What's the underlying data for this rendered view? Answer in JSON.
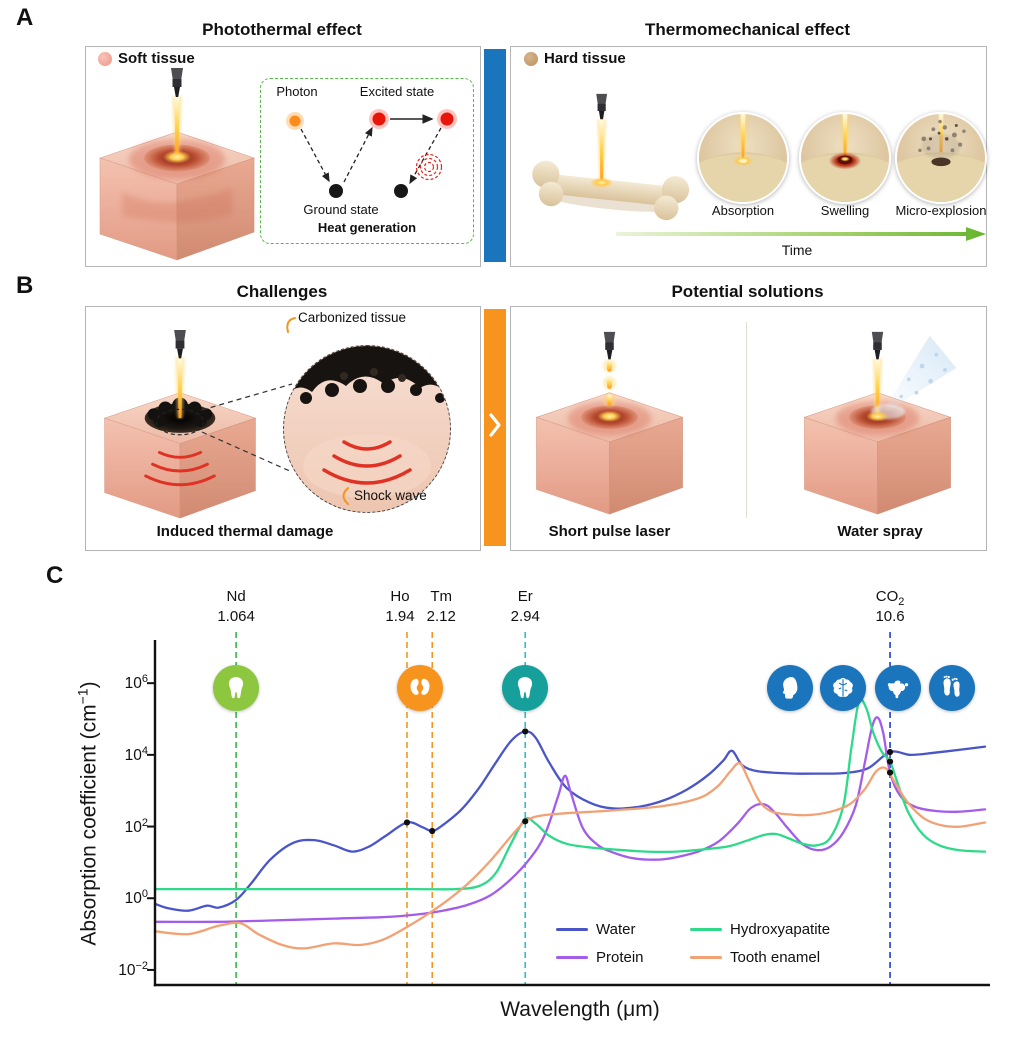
{
  "panelA": {
    "label": "A",
    "photothermal": {
      "title": "Photothermal effect",
      "tissue_label": "Soft tissue",
      "diagram": {
        "photon": "Photon",
        "excited_state": "Excited state",
        "ground_state": "Ground state",
        "caption": "Heat generation"
      }
    },
    "thermomechanical": {
      "title": "Thermomechanical effect",
      "tissue_label": "Hard tissue",
      "stages": [
        "Absorption",
        "Swelling",
        "Micro-explosion"
      ],
      "timeline_label": "Time"
    }
  },
  "panelB": {
    "label": "B",
    "challenges": {
      "title": "Challenges",
      "callout_top": "Carbonized tissue",
      "callout_bottom": "Shock wave",
      "caption": "Induced thermal damage"
    },
    "solutions": {
      "title": "Potential solutions",
      "caption_left": "Short pulse laser",
      "caption_right": "Water spray"
    }
  },
  "panelC": {
    "label": "C"
  },
  "chart_data": {
    "type": "line",
    "xlabel": "Wavelength (μm)",
    "ylabel": "Absorption coefficient (cm⁻¹)",
    "ylabel_main": "Absorption coefficient (cm",
    "ylabel_sup": "−1",
    "ylabel_close": ")",
    "x_scale": "log",
    "y_scale": "log",
    "xlim": [
      0.8,
      14.8
    ],
    "ylim": [
      0.0038,
      16000000
    ],
    "grid": false,
    "legend_position": "inside bottom, two columns",
    "y_ticks": [
      {
        "label": "10⁶",
        "exp": "6",
        "value": 1000000
      },
      {
        "label": "10⁴",
        "exp": "4",
        "value": 10000
      },
      {
        "label": "10²",
        "exp": "2",
        "value": 100
      },
      {
        "label": "10⁰",
        "exp": "0",
        "value": 1
      },
      {
        "label": "10⁻²",
        "exp": "−2",
        "value": 0.01
      }
    ],
    "laser_lines": [
      {
        "name": "Nd",
        "value_label": "1.064",
        "wavelength": 1.064,
        "color": "#3cb44a",
        "label_dx": 0
      },
      {
        "name": "Ho",
        "value_label": "1.94",
        "wavelength": 1.94,
        "color": "#f7941d",
        "label_dx": -7
      },
      {
        "name": "Tm",
        "value_label": "2.12",
        "wavelength": 2.12,
        "color": "#f7941d",
        "label_dx": 9
      },
      {
        "name": "Er",
        "value_label": "2.94",
        "wavelength": 2.94,
        "color": "#2bbfc4",
        "label_dx": 0
      },
      {
        "name": "CO₂",
        "value_label": "10.6",
        "wavelength": 10.6,
        "color": "#1b3fd0",
        "label_dx": 0
      }
    ],
    "icons": [
      {
        "name": "nd-tooth-icon",
        "glyph": "tooth",
        "color": "#8dc63f",
        "x": 1.064
      },
      {
        "name": "ho-tm-kidney-icon",
        "glyph": "kidney",
        "color": "#f7941d",
        "x": 2.03
      },
      {
        "name": "er-tooth-icon",
        "glyph": "tooth",
        "color": "#17a09b",
        "x": 2.94
      },
      {
        "name": "co2-head-icon",
        "glyph": "head",
        "color": "#1b75bc",
        "x": 7.45
      },
      {
        "name": "co2-brain-icon",
        "glyph": "brain",
        "color": "#1b75bc",
        "x": 8.98
      },
      {
        "name": "co2-uterus-icon",
        "glyph": "uterus",
        "color": "#1b75bc",
        "x": 10.9
      },
      {
        "name": "co2-feet-icon",
        "glyph": "feet",
        "color": "#1b75bc",
        "x": 13.2
      }
    ],
    "series": [
      {
        "name": "Water",
        "color": "#4a55c8",
        "points": [
          [
            0.8,
            0.7
          ],
          [
            0.84,
            0.52
          ],
          [
            0.9,
            0.45
          ],
          [
            0.96,
            0.62
          ],
          [
            1.0,
            0.55
          ],
          [
            1.064,
            0.9
          ],
          [
            1.12,
            2.5
          ],
          [
            1.2,
            12
          ],
          [
            1.3,
            35
          ],
          [
            1.4,
            42
          ],
          [
            1.5,
            30
          ],
          [
            1.6,
            20
          ],
          [
            1.7,
            28
          ],
          [
            1.8,
            55
          ],
          [
            1.94,
            130
          ],
          [
            2.05,
            95
          ],
          [
            2.12,
            75
          ],
          [
            2.2,
            110
          ],
          [
            2.35,
            300
          ],
          [
            2.5,
            1200
          ],
          [
            2.65,
            6000
          ],
          [
            2.8,
            25000
          ],
          [
            2.94,
            45000
          ],
          [
            3.05,
            30000
          ],
          [
            3.2,
            6000
          ],
          [
            3.4,
            1200
          ],
          [
            3.7,
            450
          ],
          [
            4.0,
            320
          ],
          [
            4.4,
            360
          ],
          [
            4.8,
            550
          ],
          [
            5.2,
            1100
          ],
          [
            5.6,
            2800
          ],
          [
            5.9,
            7000
          ],
          [
            6.08,
            13000
          ],
          [
            6.3,
            5200
          ],
          [
            6.6,
            3600
          ],
          [
            7.0,
            3200
          ],
          [
            7.6,
            3000
          ],
          [
            8.2,
            3000
          ],
          [
            9.0,
            3100
          ],
          [
            9.8,
            4200
          ],
          [
            10.6,
            12000
          ],
          [
            11.4,
            10000
          ],
          [
            12.4,
            11500
          ],
          [
            13.6,
            14000
          ],
          [
            14.8,
            17000
          ]
        ]
      },
      {
        "name": "Protein",
        "color": "#a35de8",
        "points": [
          [
            0.8,
            0.22
          ],
          [
            1.0,
            0.22
          ],
          [
            1.2,
            0.24
          ],
          [
            1.5,
            0.27
          ],
          [
            1.8,
            0.3
          ],
          [
            2.0,
            0.35
          ],
          [
            2.2,
            0.45
          ],
          [
            2.4,
            0.65
          ],
          [
            2.6,
            1.2
          ],
          [
            2.8,
            3.5
          ],
          [
            3.0,
            14
          ],
          [
            3.15,
            60
          ],
          [
            3.3,
            700
          ],
          [
            3.38,
            2600
          ],
          [
            3.45,
            900
          ],
          [
            3.6,
            90
          ],
          [
            3.8,
            30
          ],
          [
            4.0,
            19
          ],
          [
            4.3,
            13
          ],
          [
            4.7,
            12
          ],
          [
            5.0,
            14
          ],
          [
            5.4,
            20
          ],
          [
            5.8,
            38
          ],
          [
            6.2,
            120
          ],
          [
            6.5,
            330
          ],
          [
            6.8,
            420
          ],
          [
            7.05,
            260
          ],
          [
            7.4,
            90
          ],
          [
            7.8,
            32
          ],
          [
            8.2,
            22
          ],
          [
            8.6,
            28
          ],
          [
            9.0,
            70
          ],
          [
            9.4,
            400
          ],
          [
            9.7,
            6000
          ],
          [
            9.95,
            60000
          ],
          [
            10.15,
            110000
          ],
          [
            10.35,
            40000
          ],
          [
            10.6,
            3200
          ],
          [
            11.0,
            700
          ],
          [
            11.6,
            350
          ],
          [
            12.5,
            270
          ],
          [
            13.5,
            260
          ],
          [
            14.8,
            300
          ]
        ]
      },
      {
        "name": "Hydroxyapatite",
        "color": "#2fd98a",
        "points": [
          [
            0.8,
            1.8
          ],
          [
            1.2,
            1.8
          ],
          [
            1.6,
            1.8
          ],
          [
            2.0,
            1.8
          ],
          [
            2.3,
            1.8
          ],
          [
            2.5,
            2.2
          ],
          [
            2.65,
            5
          ],
          [
            2.8,
            35
          ],
          [
            2.94,
            160
          ],
          [
            3.05,
            120
          ],
          [
            3.2,
            55
          ],
          [
            3.4,
            33
          ],
          [
            3.7,
            26
          ],
          [
            4.0,
            23
          ],
          [
            4.5,
            20
          ],
          [
            5.0,
            20
          ],
          [
            5.5,
            23
          ],
          [
            6.0,
            28
          ],
          [
            6.4,
            40
          ],
          [
            6.8,
            58
          ],
          [
            7.1,
            62
          ],
          [
            7.4,
            48
          ],
          [
            7.8,
            33
          ],
          [
            8.2,
            30
          ],
          [
            8.6,
            50
          ],
          [
            9.0,
            400
          ],
          [
            9.25,
            15000
          ],
          [
            9.5,
            300000
          ],
          [
            9.75,
            200000
          ],
          [
            10.0,
            40000
          ],
          [
            10.3,
            12000
          ],
          [
            10.6,
            6500
          ],
          [
            10.9,
            1500
          ],
          [
            11.3,
            250
          ],
          [
            11.9,
            60
          ],
          [
            12.6,
            30
          ],
          [
            13.5,
            22
          ],
          [
            14.8,
            20
          ]
        ]
      },
      {
        "name": "Tooth enamel",
        "color": "#f2a175",
        "points": [
          [
            0.8,
            0.12
          ],
          [
            0.9,
            0.1
          ],
          [
            1.0,
            0.17
          ],
          [
            1.08,
            0.2
          ],
          [
            1.15,
            0.1
          ],
          [
            1.25,
            0.05
          ],
          [
            1.35,
            0.04
          ],
          [
            1.5,
            0.055
          ],
          [
            1.65,
            0.05
          ],
          [
            1.8,
            0.075
          ],
          [
            2.0,
            0.22
          ],
          [
            2.2,
            0.7
          ],
          [
            2.4,
            2.5
          ],
          [
            2.6,
            11
          ],
          [
            2.8,
            55
          ],
          [
            2.94,
            140
          ],
          [
            3.1,
            200
          ],
          [
            3.4,
            235
          ],
          [
            3.8,
            265
          ],
          [
            4.2,
            300
          ],
          [
            4.7,
            360
          ],
          [
            5.1,
            460
          ],
          [
            5.5,
            700
          ],
          [
            5.8,
            1400
          ],
          [
            6.05,
            3500
          ],
          [
            6.25,
            5800
          ],
          [
            6.45,
            2000
          ],
          [
            6.7,
            500
          ],
          [
            7.0,
            260
          ],
          [
            7.5,
            215
          ],
          [
            8.0,
            210
          ],
          [
            8.6,
            260
          ],
          [
            9.2,
            420
          ],
          [
            9.7,
            1100
          ],
          [
            10.1,
            3500
          ],
          [
            10.45,
            4200
          ],
          [
            10.8,
            1600
          ],
          [
            11.3,
            450
          ],
          [
            12.0,
            160
          ],
          [
            12.8,
            105
          ],
          [
            13.6,
            100
          ],
          [
            14.8,
            130
          ]
        ]
      }
    ],
    "markers": [
      [
        1.94,
        130
      ],
      [
        2.12,
        75
      ],
      [
        2.94,
        45000
      ],
      [
        2.94,
        140
      ],
      [
        10.6,
        12000
      ],
      [
        10.6,
        6500
      ],
      [
        10.6,
        3200
      ]
    ]
  }
}
